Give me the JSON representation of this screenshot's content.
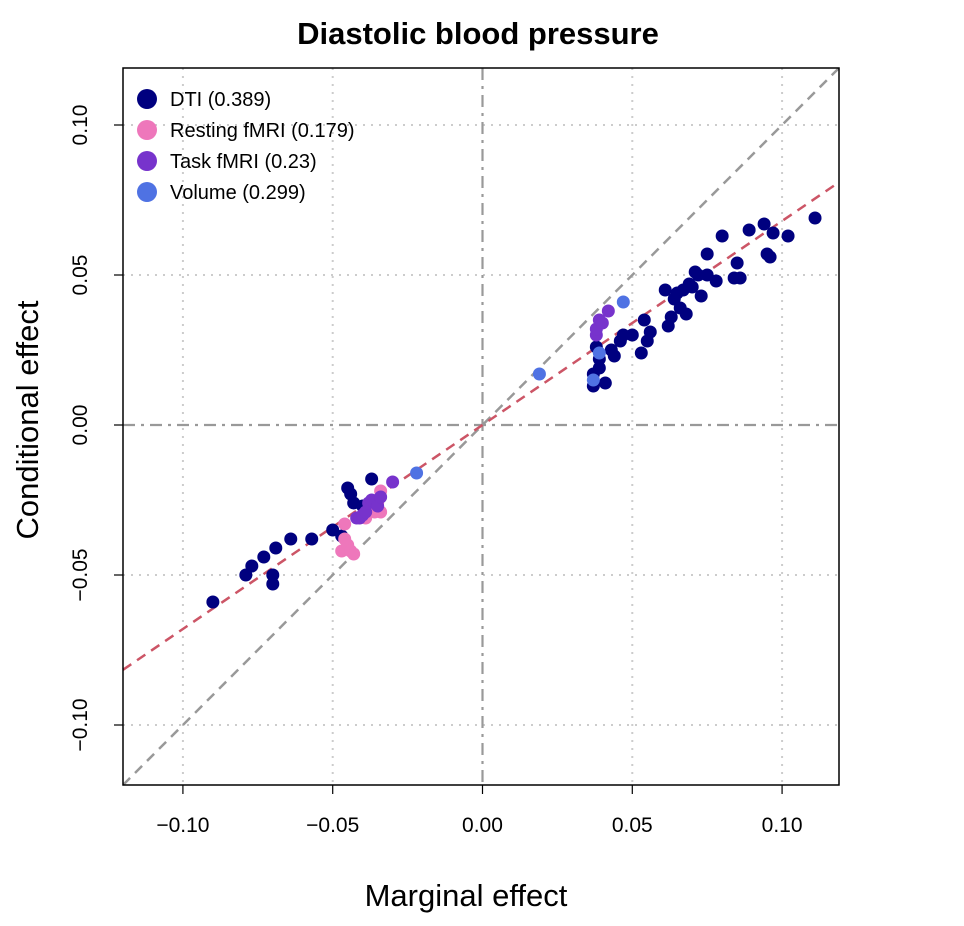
{
  "chart_data": {
    "type": "scatter",
    "title": "Diastolic blood pressure",
    "xlabel": "Marginal effect",
    "ylabel": "Conditional effect",
    "xlim": [
      -0.12,
      0.119
    ],
    "ylim": [
      -0.12,
      0.119
    ],
    "xticks": [
      -0.1,
      -0.05,
      0.0,
      0.05,
      0.1
    ],
    "yticks": [
      -0.1,
      -0.05,
      0.0,
      0.05,
      0.1
    ],
    "xtick_labels": [
      "−0.10",
      "−0.05",
      "0.00",
      "0.05",
      "0.10"
    ],
    "ytick_labels": [
      "−0.10",
      "−0.05",
      "0.00",
      "0.05",
      "0.10"
    ],
    "grid": true,
    "legend_position": "top-left",
    "reference_lines": {
      "identity_slope": 1,
      "fit_slope": 0.68,
      "identity_color": "#999999",
      "fit_color": "#cc5566",
      "zero_line_color": "#999999"
    },
    "series": [
      {
        "name": "DTI (0.389)",
        "color": "#00007f",
        "points": [
          [
            -0.09,
            -0.059
          ],
          [
            -0.079,
            -0.05
          ],
          [
            -0.077,
            -0.047
          ],
          [
            -0.073,
            -0.044
          ],
          [
            -0.07,
            -0.053
          ],
          [
            -0.07,
            -0.05
          ],
          [
            -0.069,
            -0.041
          ],
          [
            -0.064,
            -0.038
          ],
          [
            -0.057,
            -0.038
          ],
          [
            -0.05,
            -0.035
          ],
          [
            -0.047,
            -0.037
          ],
          [
            -0.045,
            -0.021
          ],
          [
            -0.044,
            -0.023
          ],
          [
            -0.043,
            -0.026
          ],
          [
            -0.04,
            -0.027
          ],
          [
            -0.037,
            -0.018
          ],
          [
            0.037,
            0.013
          ],
          [
            0.037,
            0.017
          ],
          [
            0.038,
            0.026
          ],
          [
            0.039,
            0.019
          ],
          [
            0.039,
            0.022
          ],
          [
            0.041,
            0.014
          ],
          [
            0.043,
            0.025
          ],
          [
            0.044,
            0.023
          ],
          [
            0.046,
            0.028
          ],
          [
            0.047,
            0.03
          ],
          [
            0.05,
            0.03
          ],
          [
            0.053,
            0.024
          ],
          [
            0.054,
            0.035
          ],
          [
            0.055,
            0.028
          ],
          [
            0.056,
            0.031
          ],
          [
            0.061,
            0.045
          ],
          [
            0.062,
            0.033
          ],
          [
            0.063,
            0.036
          ],
          [
            0.064,
            0.042
          ],
          [
            0.065,
            0.044
          ],
          [
            0.066,
            0.039
          ],
          [
            0.067,
            0.045
          ],
          [
            0.068,
            0.037
          ],
          [
            0.069,
            0.047
          ],
          [
            0.07,
            0.046
          ],
          [
            0.071,
            0.051
          ],
          [
            0.072,
            0.05
          ],
          [
            0.073,
            0.043
          ],
          [
            0.075,
            0.057
          ],
          [
            0.075,
            0.05
          ],
          [
            0.078,
            0.048
          ],
          [
            0.08,
            0.063
          ],
          [
            0.084,
            0.049
          ],
          [
            0.085,
            0.054
          ],
          [
            0.086,
            0.049
          ],
          [
            0.089,
            0.065
          ],
          [
            0.094,
            0.067
          ],
          [
            0.095,
            0.057
          ],
          [
            0.096,
            0.056
          ],
          [
            0.097,
            0.064
          ],
          [
            0.102,
            0.063
          ],
          [
            0.111,
            0.069
          ]
        ]
      },
      {
        "name": "Resting fMRI (0.179)",
        "color": "#ee77bb",
        "points": [
          [
            -0.047,
            -0.042
          ],
          [
            -0.046,
            -0.033
          ],
          [
            -0.046,
            -0.038
          ],
          [
            -0.045,
            -0.04
          ],
          [
            -0.044,
            -0.042
          ],
          [
            -0.043,
            -0.043
          ],
          [
            -0.039,
            -0.031
          ],
          [
            -0.038,
            -0.029
          ],
          [
            -0.036,
            -0.029
          ],
          [
            -0.035,
            -0.026
          ],
          [
            -0.034,
            -0.029
          ],
          [
            -0.034,
            -0.022
          ]
        ]
      },
      {
        "name": "Task fMRI (0.23)",
        "color": "#7733cc",
        "points": [
          [
            -0.042,
            -0.031
          ],
          [
            -0.041,
            -0.031
          ],
          [
            -0.04,
            -0.03
          ],
          [
            -0.039,
            -0.029
          ],
          [
            -0.038,
            -0.026
          ],
          [
            -0.037,
            -0.025
          ],
          [
            -0.035,
            -0.027
          ],
          [
            -0.034,
            -0.024
          ],
          [
            -0.03,
            -0.019
          ],
          [
            0.038,
            0.03
          ],
          [
            0.038,
            0.032
          ],
          [
            0.039,
            0.035
          ],
          [
            0.04,
            0.034
          ],
          [
            0.042,
            0.038
          ]
        ]
      },
      {
        "name": "Volume (0.299)",
        "color": "#4f72e3",
        "points": [
          [
            -0.022,
            -0.016
          ],
          [
            0.019,
            0.017
          ],
          [
            0.037,
            0.015
          ],
          [
            0.039,
            0.024
          ],
          [
            0.047,
            0.041
          ]
        ]
      }
    ]
  }
}
